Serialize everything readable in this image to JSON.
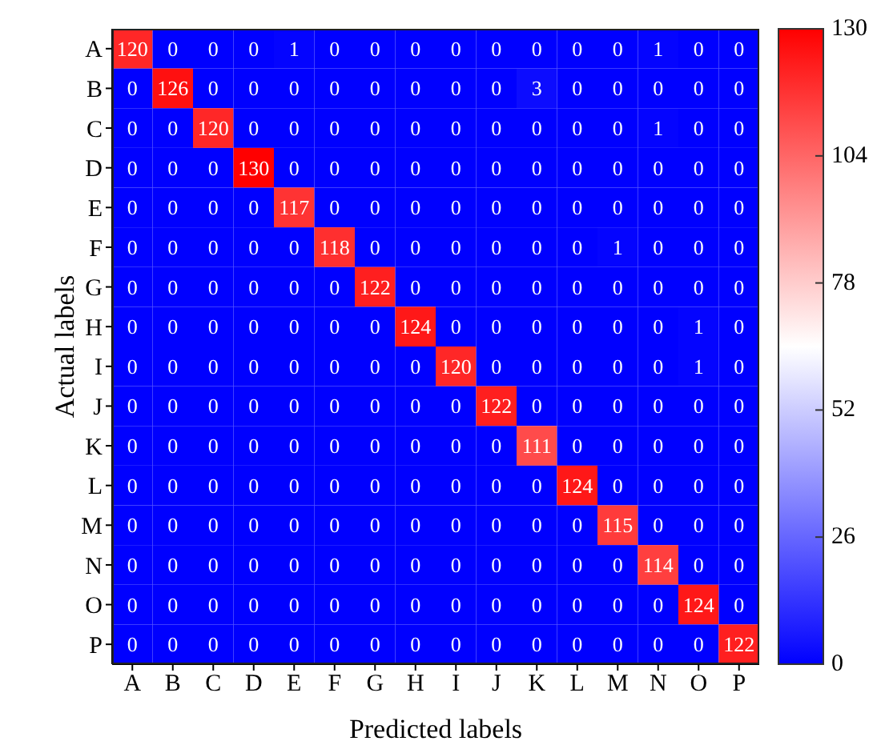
{
  "chart_data": {
    "type": "heatmap",
    "xlabel": "Predicted labels",
    "ylabel": "Actual labels",
    "categories": [
      "A",
      "B",
      "C",
      "D",
      "E",
      "F",
      "G",
      "H",
      "I",
      "J",
      "K",
      "L",
      "M",
      "N",
      "O",
      "P"
    ],
    "y_categories": [
      "A",
      "B",
      "C",
      "D",
      "E",
      "F",
      "G",
      "H",
      "I",
      "J",
      "K",
      "L",
      "M",
      "N",
      "O",
      "P"
    ],
    "cells": [
      [
        120,
        0,
        0,
        0,
        1,
        0,
        0,
        0,
        0,
        0,
        0,
        0,
        0,
        1,
        0,
        0
      ],
      [
        0,
        126,
        0,
        0,
        0,
        0,
        0,
        0,
        0,
        0,
        3,
        0,
        0,
        0,
        0,
        0
      ],
      [
        0,
        0,
        120,
        0,
        0,
        0,
        0,
        0,
        0,
        0,
        0,
        0,
        0,
        1,
        0,
        0
      ],
      [
        0,
        0,
        0,
        130,
        0,
        0,
        0,
        0,
        0,
        0,
        0,
        0,
        0,
        0,
        0,
        0
      ],
      [
        0,
        0,
        0,
        0,
        117,
        0,
        0,
        0,
        0,
        0,
        0,
        0,
        0,
        0,
        0,
        0
      ],
      [
        0,
        0,
        0,
        0,
        0,
        118,
        0,
        0,
        0,
        0,
        0,
        0,
        1,
        0,
        0,
        0
      ],
      [
        0,
        0,
        0,
        0,
        0,
        0,
        122,
        0,
        0,
        0,
        0,
        0,
        0,
        0,
        0,
        0
      ],
      [
        0,
        0,
        0,
        0,
        0,
        0,
        0,
        124,
        0,
        0,
        0,
        0,
        0,
        0,
        1,
        0
      ],
      [
        0,
        0,
        0,
        0,
        0,
        0,
        0,
        0,
        120,
        0,
        0,
        0,
        0,
        0,
        1,
        0
      ],
      [
        0,
        0,
        0,
        0,
        0,
        0,
        0,
        0,
        0,
        122,
        0,
        0,
        0,
        0,
        0,
        0
      ],
      [
        0,
        0,
        0,
        0,
        0,
        0,
        0,
        0,
        0,
        0,
        111,
        0,
        0,
        0,
        0,
        0
      ],
      [
        0,
        0,
        0,
        0,
        0,
        0,
        0,
        0,
        0,
        0,
        0,
        124,
        0,
        0,
        0,
        0
      ],
      [
        0,
        0,
        0,
        0,
        0,
        0,
        0,
        0,
        0,
        0,
        0,
        0,
        115,
        0,
        0,
        0
      ],
      [
        0,
        0,
        0,
        0,
        0,
        0,
        0,
        0,
        0,
        0,
        0,
        0,
        0,
        114,
        0,
        0
      ],
      [
        0,
        0,
        0,
        0,
        0,
        0,
        0,
        0,
        0,
        0,
        0,
        0,
        0,
        0,
        124,
        0
      ],
      [
        0,
        0,
        0,
        0,
        0,
        0,
        0,
        0,
        0,
        0,
        0,
        0,
        0,
        0,
        0,
        122
      ]
    ],
    "data_labels": true,
    "clim": [
      0,
      130
    ],
    "cticks": [
      0,
      26,
      52,
      78,
      104,
      130
    ]
  }
}
